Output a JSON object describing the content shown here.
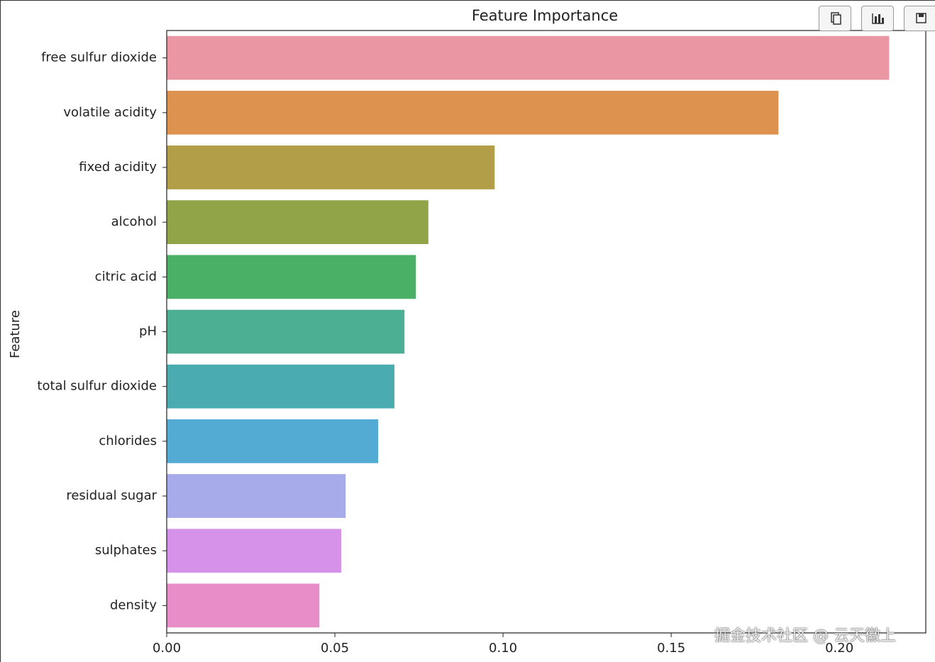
{
  "chart_data": {
    "type": "barh",
    "title": "Feature Importance",
    "y_label": "Feature",
    "categories": [
      "free sulfur dioxide",
      "volatile acidity",
      "fixed acidity",
      "alcohol",
      "citric acid",
      "pH",
      "total sulfur dioxide",
      "chlorides",
      "residual sugar",
      "sulphates",
      "density"
    ],
    "values": [
      0.2148,
      0.1819,
      0.0975,
      0.0778,
      0.0741,
      0.0707,
      0.0677,
      0.0629,
      0.0532,
      0.0519,
      0.0454
    ],
    "colors": [
      "#ea96a3",
      "#dd924f",
      "#b29e48",
      "#91a548",
      "#49b065",
      "#4cae92",
      "#4aabb0",
      "#53aad2",
      "#a8abe9",
      "#d592e8",
      "#e78dc8"
    ],
    "xlim": [
      0,
      0.2257
    ],
    "xticks": [
      {
        "value": 0,
        "label": "0.00"
      },
      0.05,
      {
        "value": 0.1,
        "label": "0.10"
      },
      0.15,
      {
        "value": 0.2,
        "label": "0.20"
      }
    ]
  },
  "watermark": "掘金技术社区 @ 云天徽上"
}
